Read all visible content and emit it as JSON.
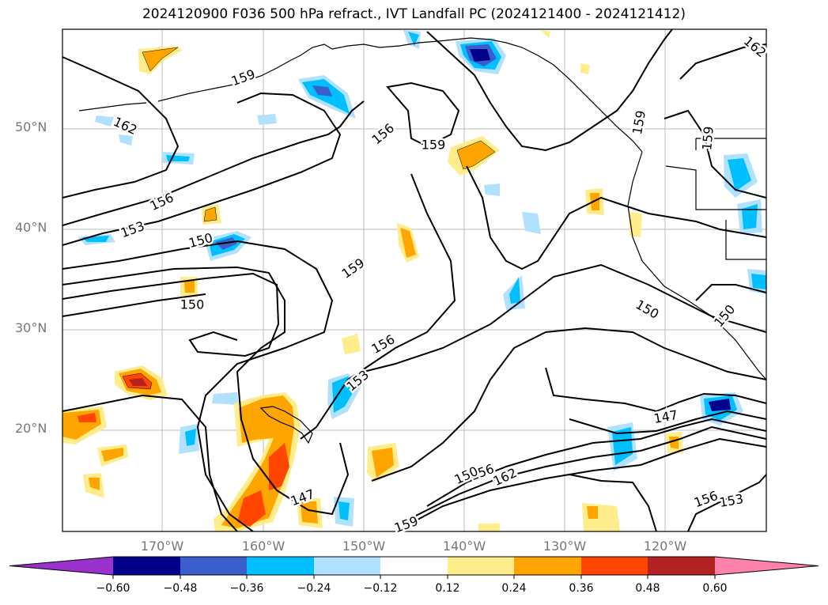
{
  "title": "2024120900 F036 500 hPa refract., IVT Landfall PC (2024121400 - 2024121412)",
  "lat_labels": [
    "50°N",
    "40°N",
    "30°N",
    "20°N"
  ],
  "lon_labels": [
    "170°W",
    "160°W",
    "150°W",
    "140°W",
    "130°W",
    "120°W"
  ],
  "contour_labels": [
    "159",
    "162",
    "156",
    "159",
    "156",
    "153",
    "150",
    "159",
    "150",
    "156",
    "153",
    "147",
    "159",
    "150",
    "162",
    "156",
    "150",
    "159",
    "147",
    "156",
    "153",
    "159",
    "162",
    "150"
  ],
  "colorbar": {
    "ticks": [
      "−0.60",
      "−0.48",
      "−0.36",
      "−0.24",
      "−0.12",
      "0.12",
      "0.24",
      "0.36",
      "0.48",
      "0.60"
    ],
    "colors": [
      "#9932cc",
      "#00008b",
      "#3a5fcd",
      "#00bfff",
      "#b0e2ff",
      "#ffffff",
      "#ffec8b",
      "#ffa500",
      "#ff4500",
      "#b22222",
      "#ff82ab"
    ]
  }
}
